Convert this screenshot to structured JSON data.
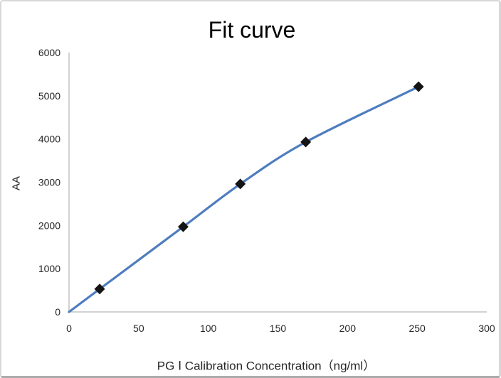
{
  "chart_data": {
    "type": "line",
    "title": "Fit curve",
    "xlabel": "PG Ⅰ Calibration Concentration（ng/ml）",
    "ylabel": "AA",
    "x": [
      0,
      22,
      82,
      123,
      170,
      251
    ],
    "y": [
      0,
      530,
      1970,
      2960,
      3930,
      5210
    ],
    "marker_start_index": 1,
    "xlim": [
      0,
      300
    ],
    "ylim": [
      0,
      6000
    ],
    "x_ticks": [
      0,
      50,
      100,
      150,
      200,
      250,
      300
    ],
    "y_ticks": [
      0,
      1000,
      2000,
      3000,
      4000,
      5000,
      6000
    ],
    "grid": false,
    "legend_position": "none",
    "line_smooth": true,
    "colors": {
      "line": "#4E7DBF",
      "marker": "#141414",
      "axis": "#C3C3C3",
      "tick_text": "#262626",
      "title_text": "#000000"
    }
  }
}
